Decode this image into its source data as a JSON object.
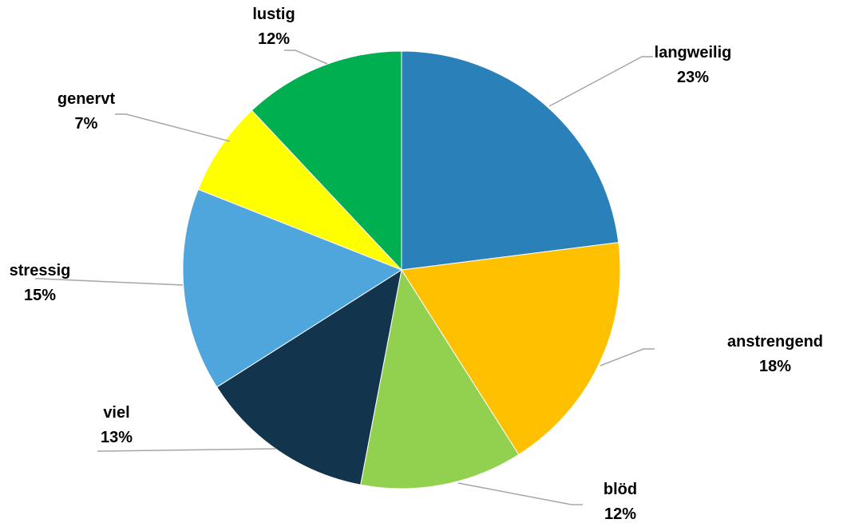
{
  "chart_data": {
    "type": "pie",
    "title": "",
    "series": [
      {
        "values": [
          23,
          18,
          12,
          13,
          15,
          7,
          12
        ]
      }
    ],
    "categories": [
      "langweilig",
      "anstrengend",
      "blöd",
      "viel",
      "stressig",
      "genervt",
      "lustig"
    ],
    "slices": [
      {
        "label": "langweilig",
        "value": 23,
        "value_label": "23%",
        "color": "#2a80b9"
      },
      {
        "label": "anstrengend",
        "value": 18,
        "value_label": "18%",
        "color": "#ffc000"
      },
      {
        "label": "blöd",
        "value": 12,
        "value_label": "12%",
        "color": "#92d050"
      },
      {
        "label": "viel",
        "value": 13,
        "value_label": "13%",
        "color": "#12344d"
      },
      {
        "label": "stressig",
        "value": 15,
        "value_label": "15%",
        "color": "#4ea6dc"
      },
      {
        "label": "genervt",
        "value": 7,
        "value_label": "7%",
        "color": "#ffff00"
      },
      {
        "label": "lustig",
        "value": 12,
        "value_label": "12%",
        "color": "#00b050"
      }
    ],
    "data_labels": "outside with leader lines",
    "legend": "none"
  }
}
